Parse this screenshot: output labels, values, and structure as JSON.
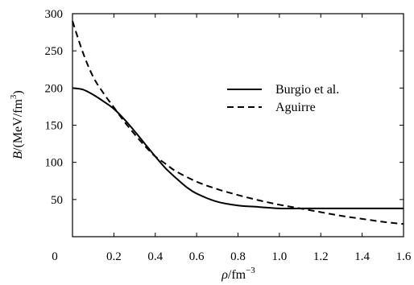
{
  "chart_data": {
    "type": "line",
    "title": "",
    "xlabel": {
      "symbol": "ρ",
      "unit": "/fm",
      "exponent": "−3"
    },
    "ylabel": {
      "symbol": "B",
      "unit": "/(MeV/fm",
      "exponent": "3",
      "close": ")"
    },
    "xlim": [
      0,
      1.6
    ],
    "ylim": [
      0,
      300
    ],
    "xticks": [
      0.2,
      0.4,
      0.6,
      0.8,
      1.0,
      1.2,
      1.4,
      1.6
    ],
    "xtick_labels": [
      "0.2",
      "0.4",
      "0.6",
      "0.8",
      "1.0",
      "1.2",
      "1.4",
      "1.6"
    ],
    "yticks": [
      50,
      100,
      150,
      200,
      250,
      300
    ],
    "ytick_labels": [
      "50",
      "100",
      "150",
      "200",
      "250",
      "300"
    ],
    "origin_label": "0",
    "grid": false,
    "legend_position": "upper-right",
    "series": [
      {
        "name": "Burgio et al.",
        "style": "solid",
        "color": "#000000",
        "x": [
          0.0,
          0.05,
          0.1,
          0.15,
          0.2,
          0.25,
          0.3,
          0.35,
          0.4,
          0.45,
          0.5,
          0.55,
          0.6,
          0.7,
          0.8,
          0.9,
          1.0,
          1.1,
          1.2,
          1.3,
          1.4,
          1.5,
          1.6
        ],
        "y": [
          200,
          198,
          191,
          182,
          172,
          158,
          142,
          125,
          108,
          92,
          79,
          67,
          58,
          47,
          42,
          40,
          38,
          38,
          38,
          38,
          38,
          38,
          38
        ]
      },
      {
        "name": "Aguirre",
        "style": "dashed",
        "color": "#000000",
        "x": [
          0.0,
          0.05,
          0.1,
          0.15,
          0.2,
          0.25,
          0.3,
          0.35,
          0.4,
          0.45,
          0.5,
          0.6,
          0.7,
          0.8,
          0.9,
          1.0,
          1.1,
          1.2,
          1.3,
          1.4,
          1.5,
          1.6
        ],
        "y": [
          290,
          248,
          215,
          193,
          174,
          155,
          138,
          122,
          108,
          98,
          88,
          74,
          64,
          56,
          49,
          43,
          38,
          33,
          28,
          24,
          20,
          17
        ]
      }
    ]
  }
}
